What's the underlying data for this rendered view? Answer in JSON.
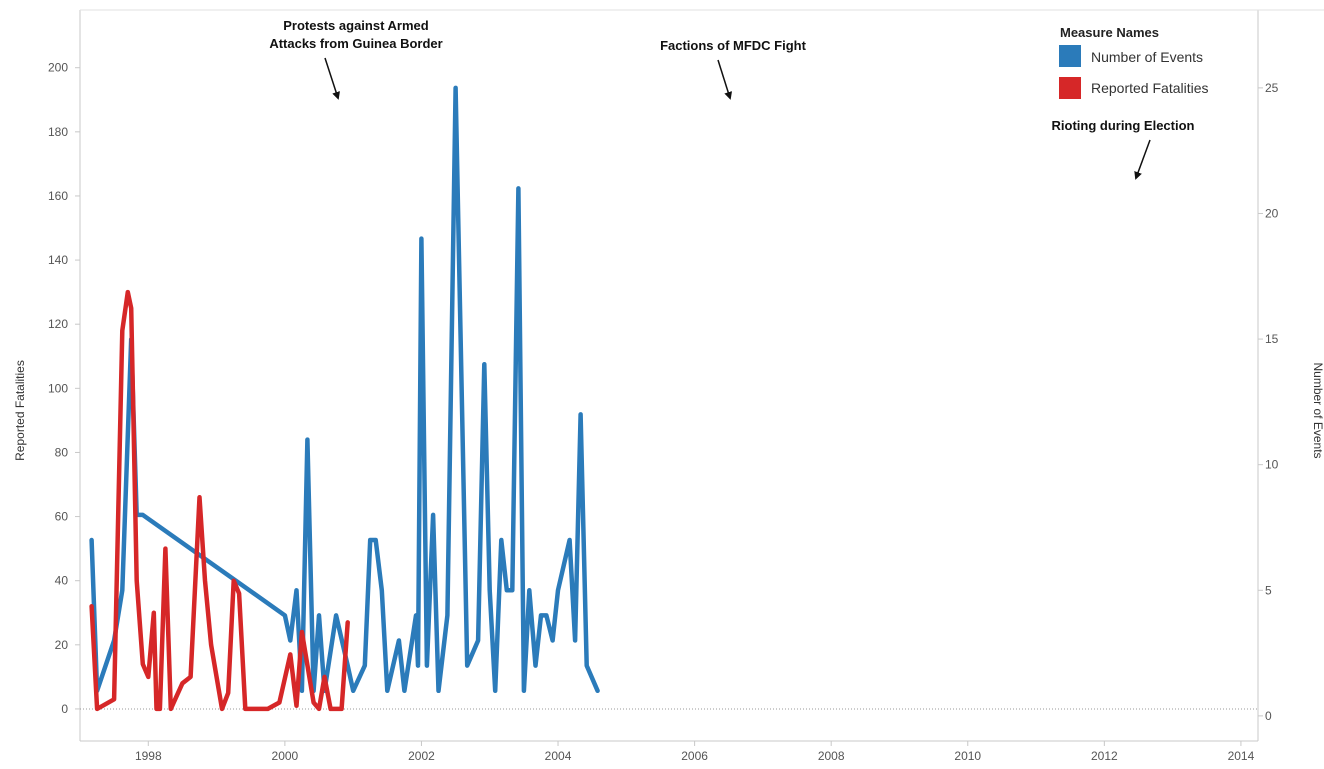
{
  "chart_data": {
    "type": "line",
    "left_axis": {
      "title": "Reported Fatalities",
      "ticks": [
        0,
        20,
        40,
        60,
        80,
        100,
        120,
        140,
        160,
        180,
        200
      ],
      "range": [
        -10,
        218
      ]
    },
    "right_axis": {
      "title": "Number of Events",
      "ticks": [
        0,
        5,
        10,
        15,
        20,
        25
      ],
      "range": [
        -1,
        28.1
      ]
    },
    "x_axis": {
      "ticks": [
        "1998",
        "2000",
        "2002",
        "2004",
        "2006",
        "2008",
        "2010",
        "2012",
        "2014"
      ],
      "range": [
        1997.0,
        2014.25
      ]
    },
    "legend": {
      "title": "Measure Names",
      "position": "top-right"
    },
    "colors": {
      "events": "#2b7bba",
      "fatalities": "#d62728",
      "zero_line": "#999999"
    },
    "series": [
      {
        "name": "Number of Events",
        "axis": "right",
        "color": "#2b7bba",
        "points": [
          [
            1997.17,
            7
          ],
          [
            1997.25,
            1
          ],
          [
            1997.5,
            3
          ],
          [
            1997.62,
            5
          ],
          [
            1997.75,
            15
          ],
          [
            1997.83,
            8
          ],
          [
            1997.92,
            8
          ],
          [
            2000.0,
            4
          ],
          [
            2000.08,
            3
          ],
          [
            2000.17,
            5
          ],
          [
            2000.25,
            1
          ],
          [
            2000.33,
            11
          ],
          [
            2000.42,
            1
          ],
          [
            2000.5,
            4
          ],
          [
            2000.58,
            1
          ],
          [
            2000.75,
            4
          ],
          [
            2000.92,
            2
          ],
          [
            2001.0,
            1
          ],
          [
            2001.17,
            2
          ],
          [
            2001.25,
            7
          ],
          [
            2001.33,
            7
          ],
          [
            2001.42,
            5
          ],
          [
            2001.5,
            1
          ],
          [
            2001.67,
            3
          ],
          [
            2001.75,
            1
          ],
          [
            2001.92,
            4
          ],
          [
            2001.95,
            2
          ],
          [
            2002.0,
            19
          ],
          [
            2002.08,
            2
          ],
          [
            2002.17,
            8
          ],
          [
            2002.25,
            1
          ],
          [
            2002.38,
            4
          ],
          [
            2002.5,
            25
          ],
          [
            2002.67,
            2
          ],
          [
            2002.83,
            3
          ],
          [
            2002.92,
            14
          ],
          [
            2003.0,
            5
          ],
          [
            2003.08,
            1
          ],
          [
            2003.17,
            7
          ],
          [
            2003.25,
            5
          ],
          [
            2003.33,
            5
          ],
          [
            2003.42,
            21
          ],
          [
            2003.5,
            1
          ],
          [
            2003.58,
            5
          ],
          [
            2003.67,
            2
          ],
          [
            2003.75,
            4
          ],
          [
            2003.83,
            4
          ],
          [
            2003.92,
            3
          ],
          [
            2004.0,
            5
          ],
          [
            2004.17,
            7
          ],
          [
            2004.25,
            3
          ],
          [
            2004.33,
            12
          ],
          [
            2004.42,
            2
          ],
          [
            2004.58,
            1
          ]
        ]
      },
      {
        "name": "Reported Fatalities",
        "axis": "left",
        "color": "#d62728",
        "points": [
          [
            1997.17,
            32
          ],
          [
            1997.25,
            0
          ],
          [
            1997.5,
            3
          ],
          [
            1997.62,
            118
          ],
          [
            1997.7,
            130
          ],
          [
            1997.75,
            125
          ],
          [
            1997.83,
            40
          ],
          [
            1997.92,
            14
          ],
          [
            1998.0,
            10
          ],
          [
            1998.08,
            30
          ],
          [
            1998.12,
            0
          ],
          [
            1998.17,
            0
          ],
          [
            1998.25,
            50
          ],
          [
            1998.33,
            0
          ],
          [
            1998.5,
            8
          ],
          [
            1998.62,
            10
          ],
          [
            1998.75,
            66
          ],
          [
            1998.83,
            40
          ],
          [
            1998.92,
            20
          ],
          [
            1999.08,
            0
          ],
          [
            1999.17,
            5
          ],
          [
            1999.25,
            40
          ],
          [
            1999.33,
            36
          ],
          [
            1999.42,
            0
          ],
          [
            1999.58,
            0
          ],
          [
            1999.75,
            0
          ],
          [
            1999.92,
            2
          ],
          [
            2000.08,
            17
          ],
          [
            2000.17,
            1
          ],
          [
            2000.25,
            24
          ],
          [
            2000.42,
            2
          ],
          [
            2000.5,
            0
          ],
          [
            2000.58,
            10
          ],
          [
            2000.67,
            0
          ],
          [
            2000.83,
            0
          ],
          [
            2000.92,
            27
          ]
        ]
      }
    ],
    "annotations": [
      {
        "lines": [
          "Protests against Armed",
          "Attacks from Guinea Border"
        ]
      },
      {
        "lines": [
          "Factions of MFDC Fight"
        ]
      },
      {
        "lines": [
          "Rioting during Election"
        ]
      }
    ]
  }
}
